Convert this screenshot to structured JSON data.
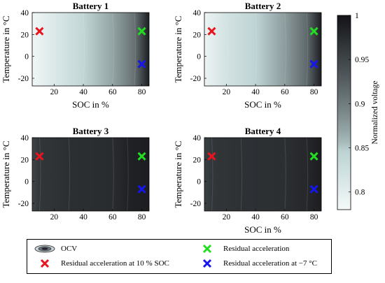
{
  "colors": {
    "red_marker": "#e8141e",
    "green_marker": "#22dd22",
    "blue_marker": "#1515ee",
    "colormap_low": "#f4f9f9",
    "colormap_mid": "#bdd3d3",
    "colormap_high": "#141418"
  },
  "colorbar": {
    "label": "Normalized voltage",
    "ticks": [
      "0.8",
      "0.85",
      "0.9",
      "0.95",
      "1"
    ],
    "tick_values": [
      0.8,
      0.85,
      0.9,
      0.95,
      1.0
    ],
    "range": [
      0.78,
      1.0
    ]
  },
  "legend": {
    "ocv": "OCV",
    "residual": "Residual acceleration",
    "soc10": "Residual acceleration at 10 % SOC",
    "temp": "Residual acceleration at −7 °C"
  },
  "chart_data": [
    {
      "type": "heatmap",
      "title": "Battery 1",
      "xlabel": "SOC in %",
      "ylabel": "Temperature in °C",
      "xticks": [
        "20",
        "40",
        "60",
        "80"
      ],
      "yticks": [
        "40",
        "20",
        "0",
        "-20"
      ],
      "xlim": [
        5,
        85
      ],
      "ylim": [
        -27,
        40
      ],
      "show_xlabel": true,
      "color_at_soc": [
        [
          5,
          0.785
        ],
        [
          20,
          0.81
        ],
        [
          40,
          0.84
        ],
        [
          60,
          0.87
        ],
        [
          75,
          0.91
        ],
        [
          85,
          0.99
        ]
      ],
      "markers": [
        {
          "kind": "soc10",
          "x": 10,
          "y": 23
        },
        {
          "kind": "residual",
          "x": 80,
          "y": 23
        },
        {
          "kind": "temp",
          "x": 80,
          "y": -7
        }
      ]
    },
    {
      "type": "heatmap",
      "title": "Battery 2",
      "xlabel": "SOC in %",
      "ylabel": "Temperature in °C",
      "xticks": [
        "20",
        "40",
        "60",
        "80"
      ],
      "yticks": [
        "40",
        "20",
        "0",
        "-20"
      ],
      "xlim": [
        5,
        85
      ],
      "ylim": [
        -27,
        40
      ],
      "show_xlabel": true,
      "color_at_soc": [
        [
          5,
          0.79
        ],
        [
          20,
          0.82
        ],
        [
          40,
          0.845
        ],
        [
          60,
          0.875
        ],
        [
          75,
          0.915
        ],
        [
          85,
          0.99
        ]
      ],
      "markers": [
        {
          "kind": "soc10",
          "x": 10,
          "y": 23
        },
        {
          "kind": "residual",
          "x": 80,
          "y": 23
        },
        {
          "kind": "temp",
          "x": 80,
          "y": -7
        }
      ]
    },
    {
      "type": "heatmap",
      "title": "Battery 3",
      "xlabel": "",
      "ylabel": "Temperature in °C",
      "xticks": [
        "20",
        "40",
        "60",
        "80"
      ],
      "yticks": [
        "40",
        "20",
        "0",
        "-20"
      ],
      "xlim": [
        5,
        85
      ],
      "ylim": [
        -27,
        40
      ],
      "show_xlabel": false,
      "color_at_soc": [
        [
          5,
          0.95
        ],
        [
          10,
          0.965
        ],
        [
          30,
          0.972
        ],
        [
          60,
          0.975
        ],
        [
          70,
          0.985
        ],
        [
          85,
          0.99
        ]
      ],
      "markers": [
        {
          "kind": "soc10",
          "x": 10,
          "y": 23
        },
        {
          "kind": "residual",
          "x": 80,
          "y": 23
        },
        {
          "kind": "temp",
          "x": 80,
          "y": -7
        }
      ]
    },
    {
      "type": "heatmap",
      "title": "Battery 4",
      "xlabel": "SOC in %",
      "ylabel": "Temperature in °C",
      "xticks": [
        "20",
        "40",
        "60",
        "80"
      ],
      "yticks": [
        "40",
        "20",
        "0",
        "-20"
      ],
      "xlim": [
        5,
        85
      ],
      "ylim": [
        -27,
        40
      ],
      "show_xlabel": true,
      "color_at_soc": [
        [
          5,
          0.955
        ],
        [
          10,
          0.965
        ],
        [
          30,
          0.97
        ],
        [
          60,
          0.972
        ],
        [
          75,
          0.98
        ],
        [
          85,
          0.99
        ]
      ],
      "markers": [
        {
          "kind": "soc10",
          "x": 10,
          "y": 23
        },
        {
          "kind": "residual",
          "x": 80,
          "y": 23
        },
        {
          "kind": "temp",
          "x": 80,
          "y": -7
        }
      ]
    }
  ]
}
